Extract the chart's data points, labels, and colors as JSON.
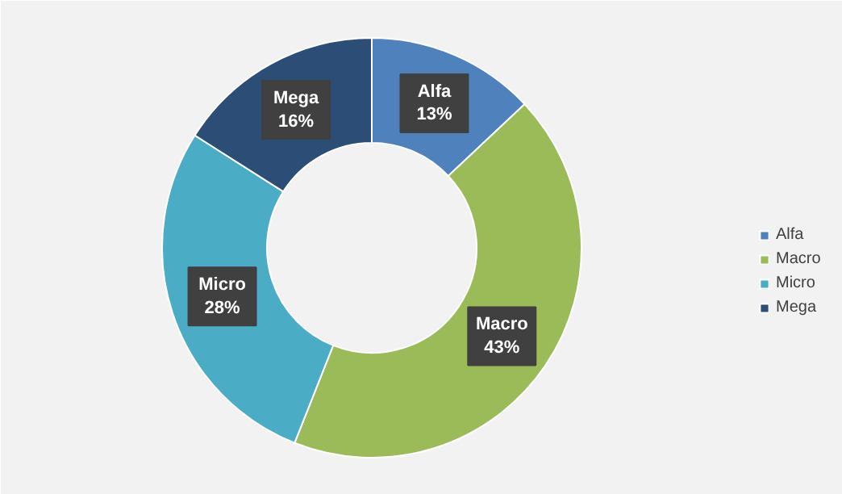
{
  "chart_data": {
    "type": "donut",
    "categories": [
      "Alfa",
      "Macro",
      "Micro",
      "Mega"
    ],
    "values": [
      13,
      43,
      28,
      16
    ],
    "colors": [
      "#4f81bd",
      "#9bbb59",
      "#4bacc6",
      "#2c4d75"
    ],
    "value_labels": [
      "13%",
      "43%",
      "28%",
      "16%"
    ],
    "legend": "right"
  }
}
